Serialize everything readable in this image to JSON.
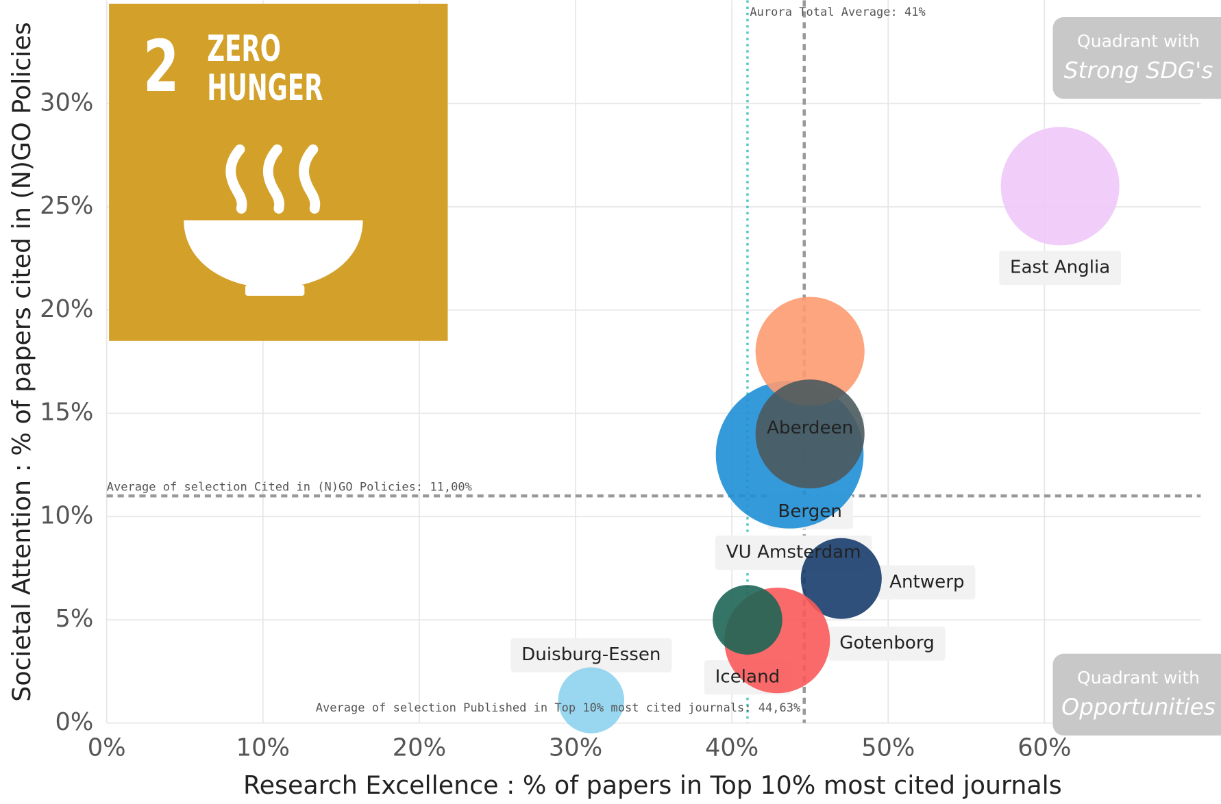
{
  "chart_data": {
    "type": "bubble",
    "x_label": "Research Excellence : % of papers in Top 10% most cited journals",
    "y_label": "Societal Attention : % of papers cited in (N)GO Policies",
    "categories": [
      "East Anglia",
      "VU Amsterdam",
      "Aberdeen",
      "Bergen",
      "Antwerp",
      "Gotenborg",
      "Iceland",
      "Duisburg-Essen"
    ],
    "x": [
      61.0,
      43.7,
      45.0,
      45.0,
      47.0,
      42.9,
      41.0,
      31.0
    ],
    "values": [
      26.0,
      13.0,
      18.0,
      14.0,
      7.0,
      4.0,
      5.0,
      1.1
    ],
    "sizes": [
      58,
      90,
      49,
      49,
      27,
      46,
      20,
      18
    ],
    "colors": [
      "#f0c8f8",
      "#1f8fd6",
      "#fd9b70",
      "#4b5a5e",
      "#173d6b",
      "#fa5a5a",
      "#1e6656",
      "#8ed3ee"
    ],
    "xlim": [
      0,
      70
    ],
    "ylim": [
      0,
      35
    ],
    "xticks": [
      {
        "value": 0,
        "label": "0%"
      },
      {
        "value": 10,
        "label": "10%"
      },
      {
        "value": 20,
        "label": "20%"
      },
      {
        "value": 30,
        "label": "30%"
      },
      {
        "value": 40,
        "label": "40%"
      },
      {
        "value": 50,
        "label": "50%"
      },
      {
        "value": 60,
        "label": "60%"
      }
    ],
    "yticks": [
      {
        "value": 0,
        "label": "0%"
      },
      {
        "value": 5,
        "label": "5%"
      },
      {
        "value": 10,
        "label": "10%"
      },
      {
        "value": 15,
        "label": "15%"
      },
      {
        "value": 20,
        "label": "20%"
      },
      {
        "value": 25,
        "label": "25%"
      },
      {
        "value": 30,
        "label": "30%"
      }
    ],
    "grid": true,
    "reference_lines": [
      {
        "axis": "y",
        "value": 11.0,
        "label": "Average of selection Cited in (N)GO Policies: 11,00%",
        "color": "#999999"
      },
      {
        "axis": "x",
        "value": 44.63,
        "label": "Average of selection Published in Top 10% most cited journals: 44,63%",
        "color": "#999999"
      },
      {
        "axis": "x",
        "value": 41,
        "label": "Aurora Total Average: 41%",
        "color": "#4fc7c0"
      }
    ],
    "quadrants": [
      {
        "line1": "Quadrant with",
        "line2": "Strong SDG's"
      },
      {
        "line1": "Quadrant with",
        "line2": "Opportunities"
      }
    ],
    "sdg_tile": {
      "number": "2",
      "title_line1": "ZERO",
      "title_line2": "HUNGER",
      "color": "#d3a02a"
    }
  }
}
